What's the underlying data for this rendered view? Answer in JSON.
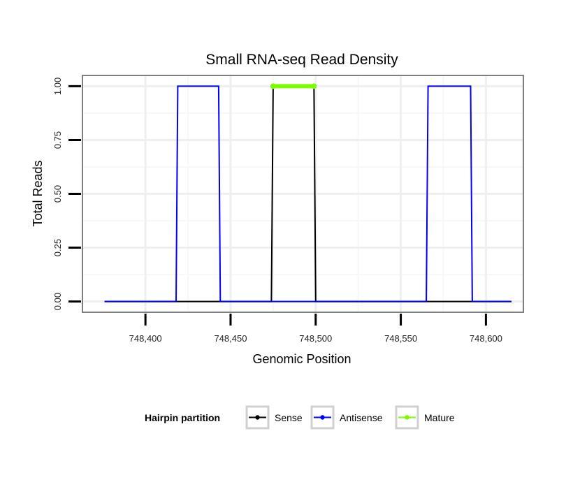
{
  "chart_data": {
    "type": "line",
    "title": "Small RNA-seq Read Density",
    "xlabel": "Genomic Position",
    "ylabel": "Total Reads",
    "xlim": [
      748363,
      748622
    ],
    "ylim": [
      -0.05,
      1.05
    ],
    "xticks": [
      748400,
      748450,
      748500,
      748550,
      748600
    ],
    "xtick_labels": [
      "748,400",
      "748,450",
      "748,500",
      "748,550",
      "748,600"
    ],
    "yticks": [
      0,
      0.25,
      0.5,
      0.75,
      1
    ],
    "ytick_labels": [
      "0.00",
      "0.25",
      "0.50",
      "0.75",
      "1.00"
    ],
    "grid": true,
    "legend_position": "bottom",
    "legend_title": "Hairpin partition",
    "series": [
      {
        "name": "Sense",
        "color": "#000000",
        "points": [
          [
            748376,
            0
          ],
          [
            748474,
            0
          ],
          [
            748475,
            1
          ],
          [
            748499,
            1
          ],
          [
            748500,
            0
          ],
          [
            748615,
            0
          ]
        ]
      },
      {
        "name": "Antisense",
        "color": "#0000ff",
        "points": [
          [
            748376,
            0
          ],
          [
            748418,
            0
          ],
          [
            748419,
            1
          ],
          [
            748443,
            1
          ],
          [
            748444,
            0
          ],
          [
            748565,
            0
          ],
          [
            748566,
            1
          ],
          [
            748591,
            1
          ],
          [
            748592,
            0
          ],
          [
            748615,
            0
          ]
        ]
      },
      {
        "name": "Mature",
        "color": "#7cfc00",
        "points": [
          [
            748475,
            1
          ],
          [
            748499,
            1
          ]
        ]
      }
    ]
  }
}
